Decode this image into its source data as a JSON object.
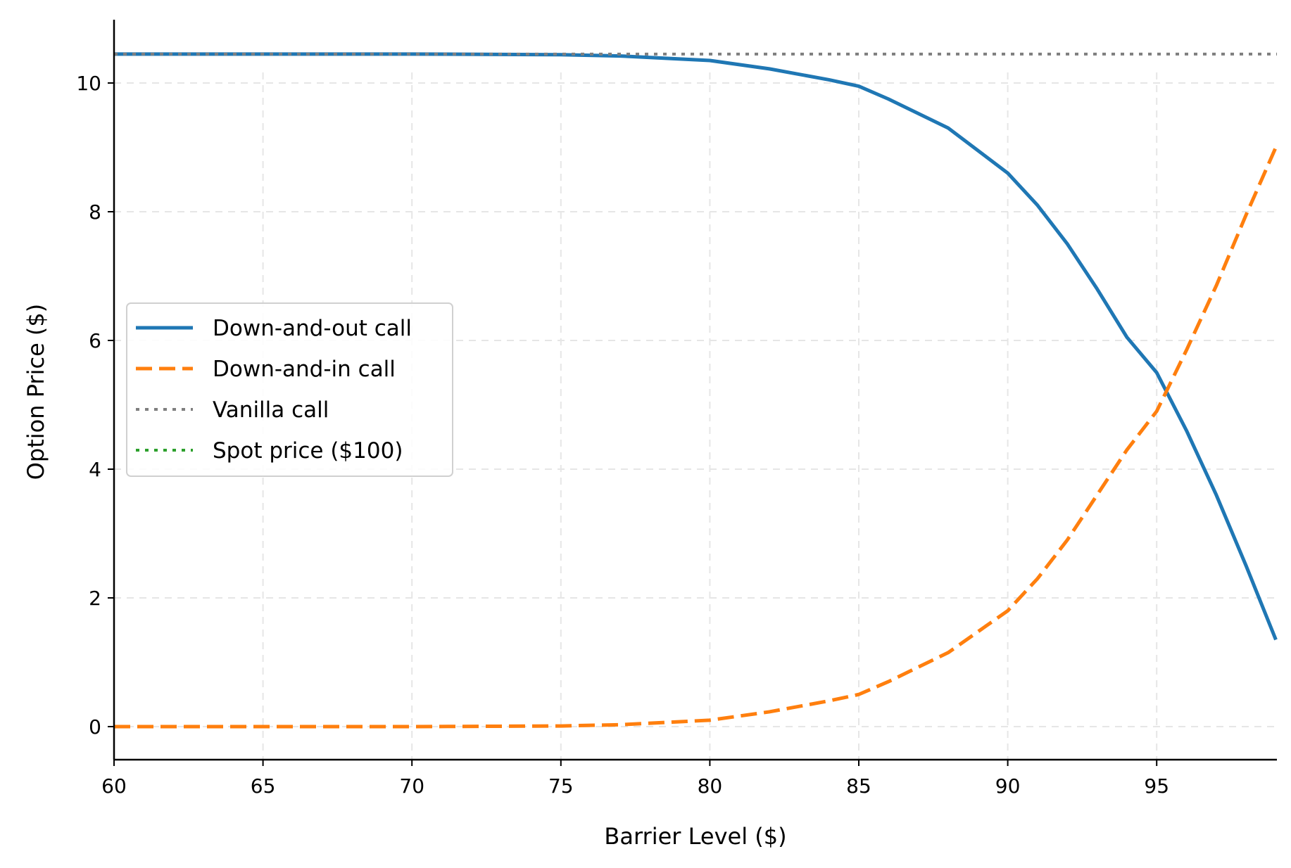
{
  "chart_data": {
    "type": "line",
    "title": "",
    "xlabel": "Barrier Level ($)",
    "ylabel": "Option Price ($)",
    "xlim": [
      60,
      99
    ],
    "ylim": [
      -0.55,
      11
    ],
    "xticks": [
      60,
      65,
      70,
      75,
      80,
      85,
      90,
      95
    ],
    "yticks": [
      0,
      2,
      4,
      6,
      8,
      10
    ],
    "grid": true,
    "legend_position": "center left",
    "x": [
      60,
      65,
      70,
      75,
      77,
      80,
      82,
      84,
      85,
      86,
      88,
      90,
      91,
      92,
      93,
      94,
      95,
      96,
      97,
      98,
      99
    ],
    "series": [
      {
        "name": "Down-and-out call",
        "style": "solid",
        "color": "#1f77b4",
        "values": [
          10.45,
          10.45,
          10.45,
          10.44,
          10.42,
          10.35,
          10.22,
          10.05,
          9.95,
          9.75,
          9.3,
          8.6,
          8.1,
          7.5,
          6.8,
          6.05,
          5.5,
          4.6,
          3.6,
          2.5,
          1.35
        ]
      },
      {
        "name": "Down-and-in call",
        "style": "dashed",
        "color": "#ff7f0e",
        "values": [
          0.0,
          0.0,
          0.0,
          0.01,
          0.03,
          0.1,
          0.23,
          0.4,
          0.5,
          0.7,
          1.15,
          1.8,
          2.3,
          2.9,
          3.6,
          4.3,
          4.9,
          5.85,
          6.85,
          7.95,
          9.0
        ]
      },
      {
        "name": "Vanilla call",
        "style": "dotted",
        "color": "#7f7f7f",
        "constant": 10.45
      },
      {
        "name": "Spot price ($100)",
        "style": "dotted",
        "color": "#2ca02c",
        "vertical_x": 100
      }
    ]
  },
  "legend": {
    "items": [
      "Down-and-out call",
      "Down-and-in call",
      "Vanilla call",
      "Spot price ($100)"
    ]
  }
}
